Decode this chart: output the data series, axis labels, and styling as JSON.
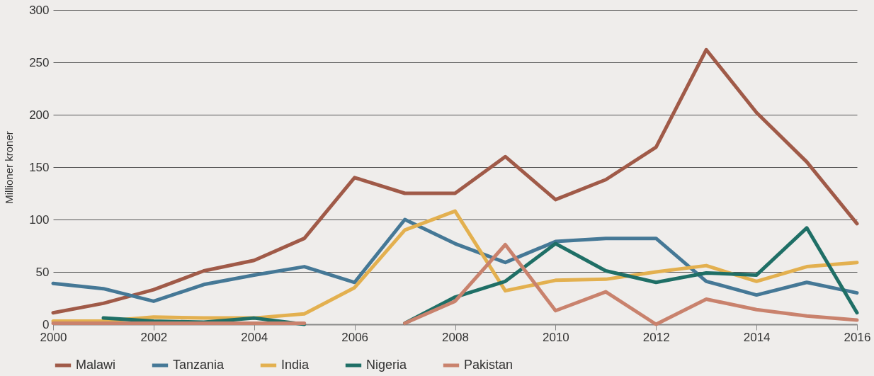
{
  "chart_data": {
    "type": "line",
    "ylabel": "Millioner kroner",
    "x": [
      2000,
      2001,
      2002,
      2003,
      2004,
      2005,
      2006,
      2007,
      2008,
      2009,
      2010,
      2011,
      2012,
      2013,
      2014,
      2015,
      2016
    ],
    "series": [
      {
        "name": "Malawi",
        "color": "#a05a48",
        "values": [
          11,
          20,
          33,
          51,
          61,
          82,
          140,
          125,
          125,
          160,
          119,
          138,
          169,
          262,
          202,
          155,
          96
        ]
      },
      {
        "name": "Tanzania",
        "color": "#457896",
        "values": [
          39,
          34,
          22,
          38,
          47,
          55,
          40,
          100,
          77,
          59,
          79,
          82,
          82,
          41,
          28,
          40,
          30
        ]
      },
      {
        "name": "India",
        "color": "#e3b04f",
        "values": [
          3,
          3,
          7,
          6,
          6,
          10,
          35,
          90,
          108,
          32,
          42,
          43,
          50,
          56,
          41,
          55,
          59
        ]
      },
      {
        "name": "Nigeria",
        "color": "#1f6f66",
        "values": [
          null,
          6,
          3,
          2,
          6,
          0,
          null,
          1,
          26,
          41,
          77,
          51,
          40,
          49,
          47,
          92,
          11
        ]
      },
      {
        "name": "Pakistan",
        "color": "#c9826d",
        "values": [
          1,
          1,
          1,
          1,
          1,
          1,
          null,
          1,
          22,
          76,
          13,
          31,
          0,
          24,
          14,
          8,
          4
        ]
      }
    ],
    "xlim": [
      2000,
      2016
    ],
    "xticks": [
      2000,
      2002,
      2004,
      2006,
      2008,
      2010,
      2012,
      2014,
      2016
    ],
    "ylim": [
      0,
      300
    ],
    "yticks": [
      0,
      50,
      100,
      150,
      200,
      250,
      300
    ],
    "grid": "y",
    "legend": "bottom",
    "marker": "none",
    "line_style": "solid"
  }
}
